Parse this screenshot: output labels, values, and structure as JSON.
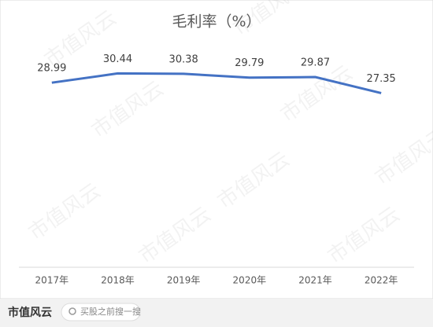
{
  "chart_data": {
    "type": "line",
    "title": "毛利率（%）",
    "categories": [
      "2017年",
      "2018年",
      "2019年",
      "2020年",
      "2021年",
      "2022年"
    ],
    "values": [
      28.99,
      30.44,
      30.38,
      29.79,
      29.87,
      27.35
    ],
    "color": "#4472c4",
    "ylim": [
      0,
      35
    ]
  },
  "footer": {
    "logo": "市值风云",
    "search": "买股之前搜一搜"
  },
  "watermark": "市值风云"
}
